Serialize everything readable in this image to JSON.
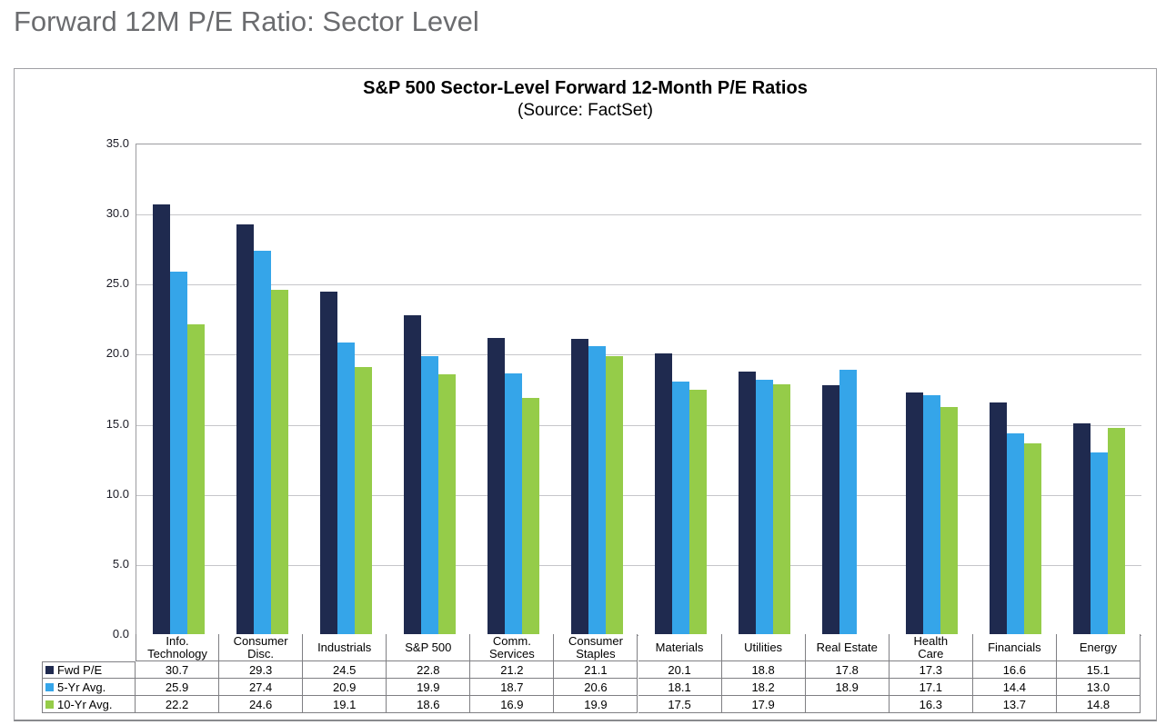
{
  "page": {
    "title": "Forward 12M P/E Ratio: Sector Level"
  },
  "chart_data": {
    "type": "bar",
    "title": "S&P 500 Sector-Level Forward 12-Month P/E Ratios",
    "subtitle": "(Source: FactSet)",
    "xlabel": "",
    "ylabel": "",
    "ylim": [
      0,
      35
    ],
    "ytick_step": 5,
    "grid": true,
    "legend_position": "table-left",
    "categories": [
      "Info.\nTechnology",
      "Consumer\nDisc.",
      "Industrials",
      "S&P 500",
      "Comm.\nServices",
      "Consumer\nStaples",
      "Materials",
      "Utilities",
      "Real Estate",
      "Health\nCare",
      "Financials",
      "Energy"
    ],
    "series": [
      {
        "name": "Fwd P/E",
        "color": "#1F2A4F",
        "values": [
          30.7,
          29.3,
          24.5,
          22.8,
          21.2,
          21.1,
          20.1,
          18.8,
          17.8,
          17.3,
          16.6,
          15.1
        ]
      },
      {
        "name": "5-Yr Avg.",
        "color": "#35A5E9",
        "values": [
          25.9,
          27.4,
          20.9,
          19.9,
          18.7,
          20.6,
          18.1,
          18.2,
          18.9,
          17.1,
          14.4,
          13.0
        ]
      },
      {
        "name": "10-Yr Avg.",
        "color": "#95CC49",
        "values": [
          22.2,
          24.6,
          19.1,
          18.6,
          16.9,
          19.9,
          17.5,
          17.9,
          null,
          16.3,
          13.7,
          14.8
        ]
      }
    ]
  }
}
